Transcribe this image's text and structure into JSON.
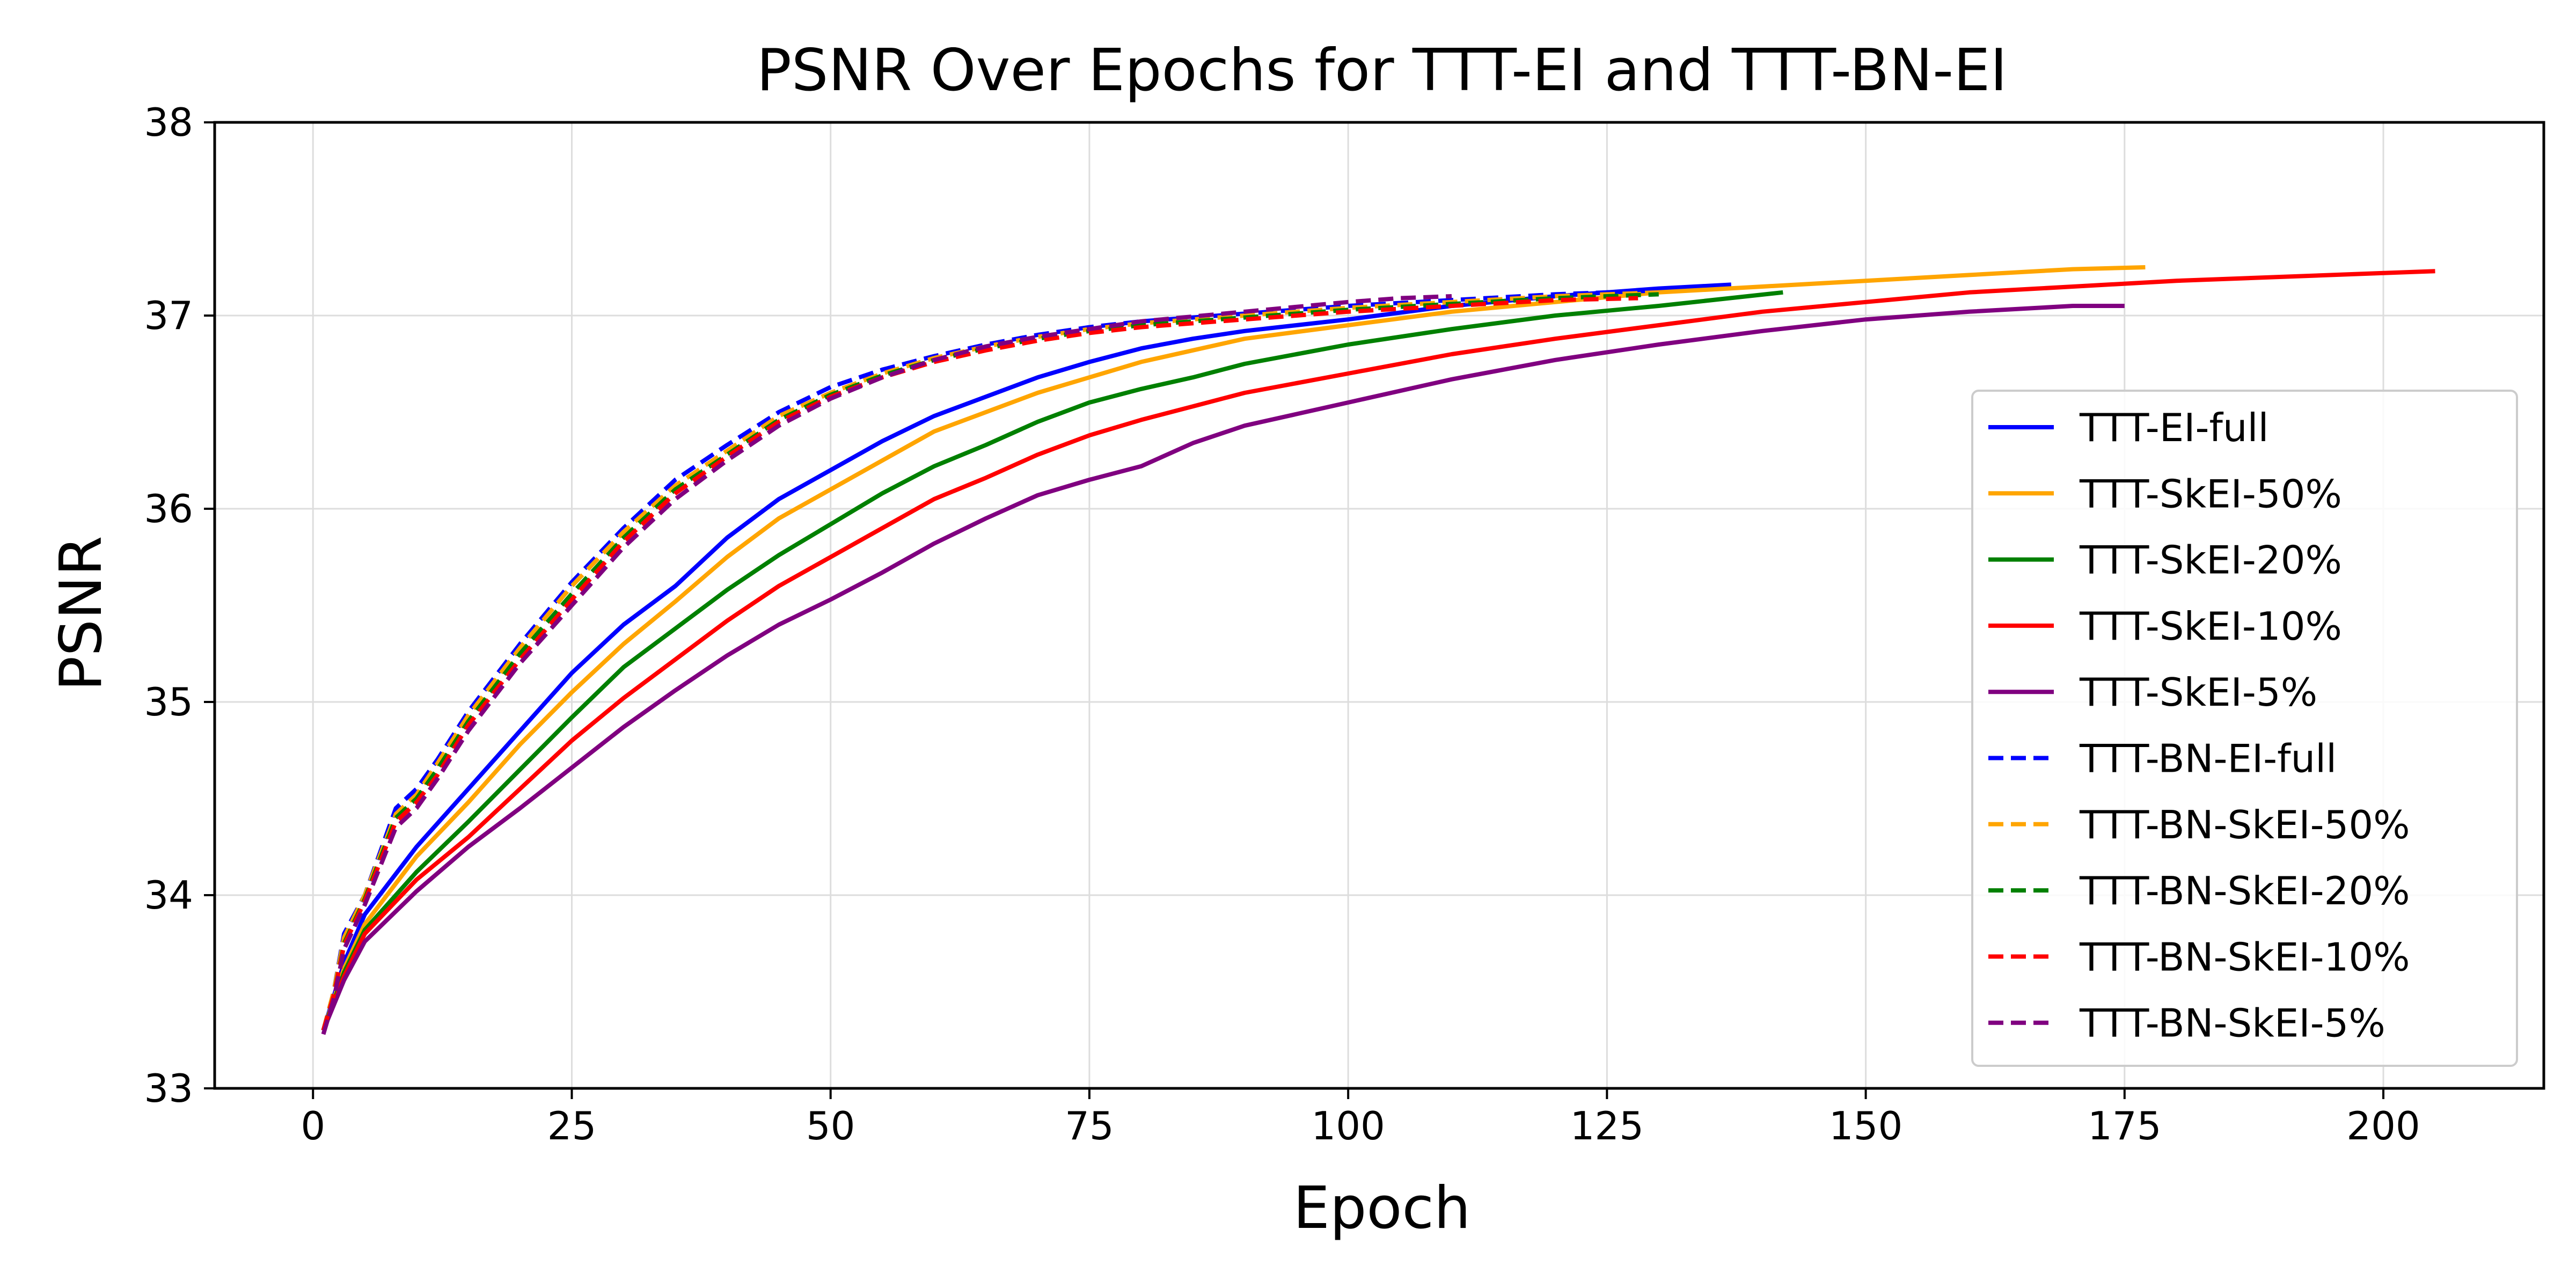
{
  "chart_data": {
    "type": "line",
    "title": "PSNR Over Epochs for TTT-EI and TTT-BN-EI",
    "xlabel": "Epoch",
    "ylabel": "PSNR",
    "xlim": [
      -9.5,
      215.5
    ],
    "ylim": [
      33,
      38
    ],
    "xticks": [
      0,
      25,
      50,
      75,
      100,
      125,
      150,
      175,
      200
    ],
    "yticks": [
      33,
      34,
      35,
      36,
      37,
      38
    ],
    "grid": true,
    "legend_position": "center-right",
    "series": [
      {
        "name": "TTT-EI-full",
        "color": "#0000ff",
        "dash": "solid",
        "points": [
          [
            1,
            33.3
          ],
          [
            3,
            33.65
          ],
          [
            5,
            33.9
          ],
          [
            10,
            34.25
          ],
          [
            15,
            34.55
          ],
          [
            20,
            34.85
          ],
          [
            25,
            35.15
          ],
          [
            30,
            35.4
          ],
          [
            35,
            35.6
          ],
          [
            40,
            35.85
          ],
          [
            45,
            36.05
          ],
          [
            50,
            36.2
          ],
          [
            55,
            36.35
          ],
          [
            60,
            36.48
          ],
          [
            65,
            36.58
          ],
          [
            70,
            36.68
          ],
          [
            75,
            36.76
          ],
          [
            80,
            36.83
          ],
          [
            85,
            36.88
          ],
          [
            90,
            36.92
          ],
          [
            100,
            36.98
          ],
          [
            110,
            37.05
          ],
          [
            120,
            37.1
          ],
          [
            130,
            37.14
          ],
          [
            137,
            37.16
          ]
        ]
      },
      {
        "name": "TTT-SkEI-50%",
        "color": "#ffa500",
        "dash": "solid",
        "points": [
          [
            1,
            33.3
          ],
          [
            3,
            33.62
          ],
          [
            5,
            33.85
          ],
          [
            10,
            34.2
          ],
          [
            15,
            34.48
          ],
          [
            20,
            34.78
          ],
          [
            25,
            35.05
          ],
          [
            30,
            35.3
          ],
          [
            35,
            35.52
          ],
          [
            40,
            35.75
          ],
          [
            45,
            35.95
          ],
          [
            50,
            36.1
          ],
          [
            55,
            36.25
          ],
          [
            60,
            36.4
          ],
          [
            65,
            36.5
          ],
          [
            70,
            36.6
          ],
          [
            75,
            36.68
          ],
          [
            80,
            36.76
          ],
          [
            85,
            36.82
          ],
          [
            90,
            36.88
          ],
          [
            100,
            36.95
          ],
          [
            110,
            37.02
          ],
          [
            120,
            37.07
          ],
          [
            130,
            37.12
          ],
          [
            140,
            37.15
          ],
          [
            150,
            37.18
          ],
          [
            160,
            37.21
          ],
          [
            170,
            37.24
          ],
          [
            177,
            37.25
          ]
        ]
      },
      {
        "name": "TTT-SkEI-20%",
        "color": "#008000",
        "dash": "solid",
        "points": [
          [
            1,
            33.3
          ],
          [
            3,
            33.6
          ],
          [
            5,
            33.82
          ],
          [
            10,
            34.12
          ],
          [
            15,
            34.38
          ],
          [
            20,
            34.65
          ],
          [
            25,
            34.92
          ],
          [
            30,
            35.18
          ],
          [
            35,
            35.38
          ],
          [
            40,
            35.58
          ],
          [
            45,
            35.76
          ],
          [
            50,
            35.92
          ],
          [
            55,
            36.08
          ],
          [
            60,
            36.22
          ],
          [
            65,
            36.33
          ],
          [
            70,
            36.45
          ],
          [
            75,
            36.55
          ],
          [
            80,
            36.62
          ],
          [
            85,
            36.68
          ],
          [
            90,
            36.75
          ],
          [
            100,
            36.85
          ],
          [
            110,
            36.93
          ],
          [
            120,
            37.0
          ],
          [
            130,
            37.05
          ],
          [
            142,
            37.12
          ]
        ]
      },
      {
        "name": "TTT-SkEI-10%",
        "color": "#ff0000",
        "dash": "solid",
        "points": [
          [
            1,
            33.3
          ],
          [
            3,
            33.58
          ],
          [
            5,
            33.8
          ],
          [
            10,
            34.08
          ],
          [
            15,
            34.3
          ],
          [
            20,
            34.55
          ],
          [
            25,
            34.8
          ],
          [
            30,
            35.02
          ],
          [
            35,
            35.22
          ],
          [
            40,
            35.42
          ],
          [
            45,
            35.6
          ],
          [
            50,
            35.75
          ],
          [
            55,
            35.9
          ],
          [
            60,
            36.05
          ],
          [
            65,
            36.16
          ],
          [
            70,
            36.28
          ],
          [
            75,
            36.38
          ],
          [
            80,
            36.46
          ],
          [
            85,
            36.53
          ],
          [
            90,
            36.6
          ],
          [
            100,
            36.7
          ],
          [
            110,
            36.8
          ],
          [
            120,
            36.88
          ],
          [
            130,
            36.95
          ],
          [
            140,
            37.02
          ],
          [
            150,
            37.07
          ],
          [
            160,
            37.12
          ],
          [
            170,
            37.15
          ],
          [
            180,
            37.18
          ],
          [
            190,
            37.2
          ],
          [
            200,
            37.22
          ],
          [
            205,
            37.23
          ]
        ]
      },
      {
        "name": "TTT-SkEI-5%",
        "color": "#800080",
        "dash": "solid",
        "points": [
          [
            1,
            33.3
          ],
          [
            3,
            33.56
          ],
          [
            5,
            33.76
          ],
          [
            10,
            34.02
          ],
          [
            15,
            34.25
          ],
          [
            20,
            34.45
          ],
          [
            25,
            34.66
          ],
          [
            30,
            34.87
          ],
          [
            35,
            35.06
          ],
          [
            40,
            35.24
          ],
          [
            45,
            35.4
          ],
          [
            50,
            35.53
          ],
          [
            55,
            35.67
          ],
          [
            60,
            35.82
          ],
          [
            65,
            35.95
          ],
          [
            70,
            36.07
          ],
          [
            75,
            36.15
          ],
          [
            80,
            36.22
          ],
          [
            85,
            36.34
          ],
          [
            90,
            36.43
          ],
          [
            100,
            36.55
          ],
          [
            110,
            36.67
          ],
          [
            120,
            36.77
          ],
          [
            130,
            36.85
          ],
          [
            140,
            36.92
          ],
          [
            150,
            36.98
          ],
          [
            160,
            37.02
          ],
          [
            170,
            37.05
          ],
          [
            175,
            37.05
          ]
        ]
      },
      {
        "name": "TTT-BN-EI-full",
        "color": "#0000ff",
        "dash": "dashed",
        "points": [
          [
            1,
            33.3
          ],
          [
            2,
            33.5
          ],
          [
            3,
            33.8
          ],
          [
            5,
            34.0
          ],
          [
            8,
            34.45
          ],
          [
            10,
            34.55
          ],
          [
            12,
            34.7
          ],
          [
            15,
            34.95
          ],
          [
            20,
            35.3
          ],
          [
            25,
            35.62
          ],
          [
            30,
            35.9
          ],
          [
            35,
            36.15
          ],
          [
            40,
            36.33
          ],
          [
            45,
            36.5
          ],
          [
            50,
            36.63
          ],
          [
            55,
            36.72
          ],
          [
            60,
            36.79
          ],
          [
            65,
            36.85
          ],
          [
            70,
            36.9
          ],
          [
            75,
            36.94
          ],
          [
            80,
            36.97
          ],
          [
            90,
            37.01
          ],
          [
            100,
            37.05
          ],
          [
            110,
            37.08
          ],
          [
            120,
            37.11
          ],
          [
            130,
            37.13
          ]
        ]
      },
      {
        "name": "TTT-BN-SkEI-50%",
        "color": "#ffa500",
        "dash": "dashed",
        "points": [
          [
            1,
            33.3
          ],
          [
            2,
            33.5
          ],
          [
            3,
            33.78
          ],
          [
            5,
            34.0
          ],
          [
            8,
            34.42
          ],
          [
            10,
            34.52
          ],
          [
            12,
            34.68
          ],
          [
            15,
            34.93
          ],
          [
            20,
            35.28
          ],
          [
            25,
            35.6
          ],
          [
            30,
            35.88
          ],
          [
            35,
            36.12
          ],
          [
            40,
            36.3
          ],
          [
            45,
            36.48
          ],
          [
            50,
            36.6
          ],
          [
            55,
            36.7
          ],
          [
            60,
            36.78
          ],
          [
            65,
            36.84
          ],
          [
            70,
            36.89
          ],
          [
            75,
            36.93
          ],
          [
            80,
            36.96
          ],
          [
            90,
            37.0
          ],
          [
            100,
            37.04
          ],
          [
            110,
            37.07
          ],
          [
            120,
            37.1
          ],
          [
            130,
            37.12
          ]
        ]
      },
      {
        "name": "TTT-BN-SkEI-20%",
        "color": "#008000",
        "dash": "dashed",
        "points": [
          [
            1,
            33.3
          ],
          [
            2,
            33.48
          ],
          [
            3,
            33.75
          ],
          [
            5,
            33.98
          ],
          [
            8,
            34.4
          ],
          [
            10,
            34.5
          ],
          [
            12,
            34.65
          ],
          [
            15,
            34.9
          ],
          [
            20,
            35.25
          ],
          [
            25,
            35.56
          ],
          [
            30,
            35.85
          ],
          [
            35,
            36.1
          ],
          [
            40,
            36.28
          ],
          [
            45,
            36.46
          ],
          [
            50,
            36.59
          ],
          [
            55,
            36.69
          ],
          [
            60,
            36.77
          ],
          [
            65,
            36.83
          ],
          [
            70,
            36.88
          ],
          [
            75,
            36.92
          ],
          [
            80,
            36.95
          ],
          [
            90,
            36.99
          ],
          [
            100,
            37.03
          ],
          [
            110,
            37.06
          ],
          [
            120,
            37.09
          ],
          [
            130,
            37.11
          ]
        ]
      },
      {
        "name": "TTT-BN-SkEI-10%",
        "color": "#ff0000",
        "dash": "dashed",
        "points": [
          [
            1,
            33.3
          ],
          [
            2,
            33.48
          ],
          [
            3,
            33.74
          ],
          [
            5,
            33.97
          ],
          [
            8,
            34.38
          ],
          [
            10,
            34.48
          ],
          [
            12,
            34.62
          ],
          [
            15,
            34.88
          ],
          [
            20,
            35.22
          ],
          [
            25,
            35.53
          ],
          [
            30,
            35.83
          ],
          [
            35,
            36.08
          ],
          [
            40,
            36.27
          ],
          [
            45,
            36.45
          ],
          [
            50,
            36.58
          ],
          [
            55,
            36.68
          ],
          [
            60,
            36.76
          ],
          [
            65,
            36.82
          ],
          [
            70,
            36.87
          ],
          [
            75,
            36.91
          ],
          [
            80,
            36.94
          ],
          [
            90,
            36.98
          ],
          [
            100,
            37.02
          ],
          [
            110,
            37.05
          ],
          [
            120,
            37.08
          ],
          [
            128,
            37.09
          ]
        ]
      },
      {
        "name": "TTT-BN-SkEI-5%",
        "color": "#800080",
        "dash": "dashed",
        "points": [
          [
            1,
            33.28
          ],
          [
            2,
            33.46
          ],
          [
            3,
            33.72
          ],
          [
            5,
            33.95
          ],
          [
            8,
            34.35
          ],
          [
            10,
            34.45
          ],
          [
            12,
            34.6
          ],
          [
            15,
            34.85
          ],
          [
            20,
            35.2
          ],
          [
            25,
            35.5
          ],
          [
            30,
            35.8
          ],
          [
            35,
            36.05
          ],
          [
            40,
            36.25
          ],
          [
            45,
            36.43
          ],
          [
            50,
            36.57
          ],
          [
            55,
            36.68
          ],
          [
            60,
            36.77
          ],
          [
            65,
            36.84
          ],
          [
            70,
            36.89
          ],
          [
            75,
            36.93
          ],
          [
            80,
            36.97
          ],
          [
            90,
            37.02
          ],
          [
            100,
            37.07
          ],
          [
            105,
            37.09
          ],
          [
            110,
            37.1
          ]
        ]
      }
    ]
  }
}
